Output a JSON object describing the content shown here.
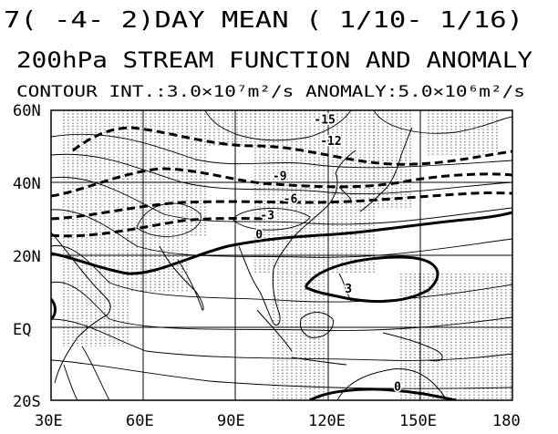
{
  "header": {
    "line1": "7( -4-  2)DAY MEAN ( 1/10- 1/16)",
    "line2": "200hPa STREAM FUNCTION AND ANOMALY",
    "line3": "CONTOUR INT.:3.0×10⁷m²/s  ANOMALY:5.0×10⁶m²/s"
  },
  "axes": {
    "lat_labels": [
      "60N",
      "40N",
      "20N",
      "EQ",
      "20S"
    ],
    "lon_labels": [
      "30E",
      "60E",
      "90E",
      "120E",
      "150E",
      "180"
    ]
  },
  "map": {
    "lon_range": [
      30,
      180
    ],
    "lat_range": [
      -20,
      60
    ],
    "grid_lons": [
      60,
      90,
      120,
      150
    ],
    "grid_lats": [
      0,
      20,
      40
    ],
    "contour_labels": [
      {
        "text": "-15",
        "lon": 115.5,
        "lat": 56.3
      },
      {
        "text": "-12",
        "lon": 117.5,
        "lat": 50.4
      },
      {
        "text": "-9",
        "lon": 102.0,
        "lat": 40.8
      },
      {
        "text": "-6",
        "lon": 105.5,
        "lat": 34.5
      },
      {
        "text": "-3",
        "lon": 98.0,
        "lat": 30.0
      },
      {
        "text": "0",
        "lon": 96.5,
        "lat": 24.6
      },
      {
        "text": "3",
        "lon": 125.5,
        "lat": 9.7
      },
      {
        "text": "0",
        "lon": 141.5,
        "lat": -17.3
      }
    ]
  }
}
